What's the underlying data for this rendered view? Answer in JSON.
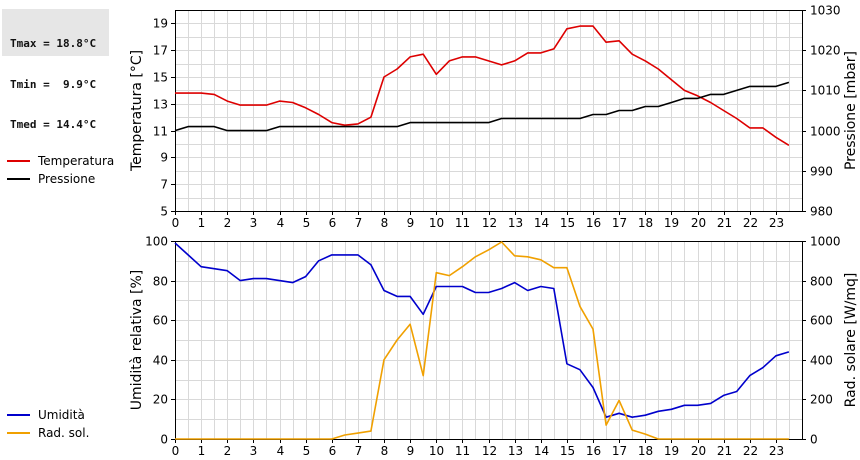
{
  "stats": {
    "tmax": "Tmax = 18.8°C",
    "tmin": "Tmin =  9.9°C",
    "tmed": "Tmed = 14.4°C"
  },
  "chart_data": [
    {
      "type": "line",
      "x_ticks": [
        "0",
        "1",
        "2",
        "3",
        "4",
        "5",
        "6",
        "7",
        "8",
        "9",
        "10",
        "11",
        "12",
        "13",
        "14",
        "15",
        "16",
        "17",
        "18",
        "19",
        "20",
        "21",
        "22",
        "23"
      ],
      "xlim": [
        0,
        24
      ],
      "ylabel_left": "Temperatura [°C]",
      "ylabel_right": "Pressione [mbar]",
      "ylim_left": [
        5,
        20
      ],
      "yticks_left": [
        5,
        7,
        9,
        11,
        13,
        15,
        17,
        19
      ],
      "ylim_right": [
        980,
        1030
      ],
      "yticks_right": [
        980,
        990,
        1000,
        1010,
        1020,
        1030
      ],
      "legend": [
        "Temperatura",
        "Pressione"
      ],
      "series": [
        {
          "name": "Temperatura",
          "axis": "left",
          "color": "#dd0000",
          "x": [
            0,
            0.5,
            1,
            1.5,
            2,
            2.5,
            3,
            3.5,
            4,
            4.5,
            5,
            5.5,
            6,
            6.5,
            7,
            7.5,
            8,
            8.5,
            9,
            9.5,
            10,
            10.5,
            11,
            11.5,
            12,
            12.5,
            13,
            13.5,
            14,
            14.5,
            15,
            15.5,
            16,
            16.5,
            17,
            17.5,
            18,
            18.5,
            19,
            19.5,
            20,
            20.5,
            21,
            21.5,
            22,
            22.5,
            23,
            23.5
          ],
          "values": [
            13.8,
            13.8,
            13.8,
            13.7,
            13.2,
            12.9,
            12.9,
            12.9,
            13.2,
            13.1,
            12.7,
            12.2,
            11.6,
            11.4,
            11.5,
            12.0,
            15.0,
            15.6,
            16.5,
            16.7,
            15.2,
            16.2,
            16.5,
            16.5,
            16.2,
            15.9,
            16.2,
            16.8,
            16.8,
            17.1,
            18.6,
            18.8,
            18.8,
            17.6,
            17.7,
            16.7,
            16.2,
            15.6,
            14.8,
            14.0,
            13.6,
            13.1,
            12.5,
            11.9,
            11.2,
            11.2,
            10.5,
            9.9
          ]
        },
        {
          "name": "Pressione",
          "axis": "right",
          "color": "#000000",
          "x": [
            0,
            0.5,
            1,
            1.5,
            2,
            2.5,
            3,
            3.5,
            4,
            4.5,
            5,
            5.5,
            6,
            6.5,
            7,
            7.5,
            8,
            8.5,
            9,
            9.5,
            10,
            10.5,
            11,
            11.5,
            12,
            12.5,
            13,
            13.5,
            14,
            14.5,
            15,
            15.5,
            16,
            16.5,
            17,
            17.5,
            18,
            18.5,
            19,
            19.5,
            20,
            20.5,
            21,
            21.5,
            22,
            22.5,
            23,
            23.5
          ],
          "values": [
            1000,
            1001,
            1001,
            1001,
            1000,
            1000,
            1000,
            1000,
            1001,
            1001,
            1001,
            1001,
            1001,
            1001,
            1001,
            1001,
            1001,
            1001,
            1002,
            1002,
            1002,
            1002,
            1002,
            1002,
            1002,
            1003,
            1003,
            1003,
            1003,
            1003,
            1003,
            1003,
            1004,
            1004,
            1005,
            1005,
            1006,
            1006,
            1007,
            1008,
            1008,
            1009,
            1009,
            1010,
            1011,
            1011,
            1011,
            1012
          ]
        }
      ]
    },
    {
      "type": "line",
      "x_ticks": [
        "0",
        "1",
        "2",
        "3",
        "4",
        "5",
        "6",
        "7",
        "8",
        "9",
        "10",
        "11",
        "12",
        "13",
        "14",
        "15",
        "16",
        "17",
        "18",
        "19",
        "20",
        "21",
        "22",
        "23"
      ],
      "xlim": [
        0,
        24
      ],
      "ylabel_left": "Umidità relativa [%]",
      "ylabel_right": "Rad. solare [W/mq]",
      "ylim_left": [
        0,
        100
      ],
      "yticks_left": [
        0,
        20,
        40,
        60,
        80,
        100
      ],
      "ylim_right": [
        0,
        1000
      ],
      "yticks_right": [
        0,
        200,
        400,
        600,
        800,
        1000
      ],
      "legend": [
        "Umidità",
        "Rad. sol."
      ],
      "series": [
        {
          "name": "Umidità",
          "axis": "left",
          "color": "#0000cc",
          "x": [
            0,
            0.5,
            1,
            1.5,
            2,
            2.5,
            3,
            3.5,
            4,
            4.5,
            5,
            5.5,
            6,
            6.5,
            7,
            7.5,
            8,
            8.5,
            9,
            9.5,
            10,
            10.5,
            11,
            11.5,
            12,
            12.5,
            13,
            13.5,
            14,
            14.5,
            15,
            15.5,
            16,
            16.5,
            17,
            17.5,
            18,
            18.5,
            19,
            19.5,
            20,
            20.5,
            21,
            21.5,
            22,
            22.5,
            23,
            23.5
          ],
          "values": [
            99,
            93,
            87,
            86,
            85,
            80,
            81,
            81,
            80,
            79,
            82,
            90,
            93,
            93,
            93,
            88,
            75,
            72,
            72,
            63,
            77,
            77,
            77,
            74,
            74,
            76,
            79,
            75,
            77,
            76,
            38,
            35,
            26,
            11,
            13,
            11,
            12,
            14,
            15,
            17,
            17,
            18,
            22,
            24,
            32,
            36,
            42,
            44
          ]
        },
        {
          "name": "Rad. sol.",
          "axis": "right",
          "color": "#f0a000",
          "x": [
            0,
            0.5,
            1,
            1.5,
            2,
            2.5,
            3,
            3.5,
            4,
            4.5,
            5,
            5.5,
            6,
            6.5,
            7,
            7.5,
            8,
            8.5,
            9,
            9.5,
            10,
            10.5,
            11,
            11.5,
            12,
            12.5,
            13,
            13.5,
            14,
            14.5,
            15,
            15.5,
            16,
            16.5,
            17,
            17.5,
            18,
            18.5,
            19,
            19.5,
            20,
            20.5,
            21,
            21.5,
            22,
            22.5,
            23,
            23.5
          ],
          "values": [
            0,
            0,
            0,
            0,
            0,
            0,
            0,
            0,
            0,
            0,
            0,
            0,
            0,
            20,
            30,
            40,
            400,
            500,
            580,
            320,
            840,
            825,
            870,
            920,
            955,
            995,
            925,
            920,
            905,
            865,
            865,
            670,
            555,
            70,
            195,
            45,
            25,
            0,
            0,
            0,
            0,
            0,
            0,
            0,
            0,
            0,
            0,
            0
          ]
        }
      ]
    }
  ]
}
